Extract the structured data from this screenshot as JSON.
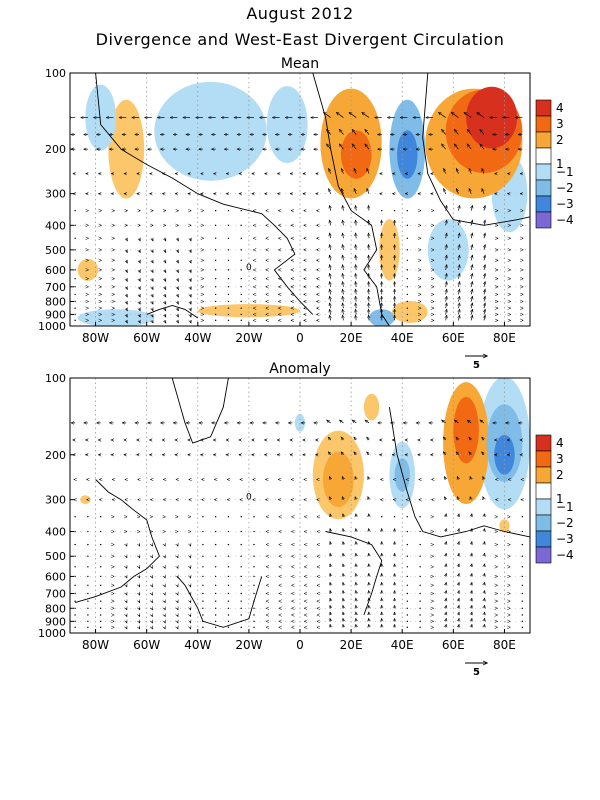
{
  "title": "August 2012",
  "subtitle": "Divergence and West-East Divergent Circulation",
  "colorbar": {
    "labels": [
      "4",
      "3",
      "2",
      "1",
      "−1",
      "−2",
      "−3",
      "−4"
    ],
    "colors": [
      "#d7301f",
      "#f16913",
      "#f7a736",
      "#ffffff",
      "#b3dcf5",
      "#7fbce8",
      "#3f86dc",
      "#7b68d6"
    ]
  },
  "reference_vector": "5",
  "chart_data": [
    {
      "type": "heatmap",
      "title": "Mean",
      "xlabel": "",
      "ylabel": "",
      "xlim": [
        -90,
        90
      ],
      "x_ticks": [
        "80W",
        "60W",
        "40W",
        "20W",
        "0",
        "20E",
        "40E",
        "60E",
        "80E"
      ],
      "y_ticks": [
        "100",
        "200",
        "300",
        "400",
        "500",
        "600",
        "700",
        "800",
        "900",
        "1000"
      ],
      "y_scale": "log-pressure",
      "contour_label": "0",
      "shaded_regions": [
        {
          "lon": 75,
          "p": 150,
          "value": 4,
          "rx": 10,
          "ry": 0.28
        },
        {
          "lon": 72,
          "p": 170,
          "value": 3,
          "rx": 15,
          "ry": 0.38
        },
        {
          "lon": 68,
          "p": 190,
          "value": 2,
          "rx": 19,
          "ry": 0.5
        },
        {
          "lon": 22,
          "p": 210,
          "value": 3,
          "rx": 6,
          "ry": 0.22
        },
        {
          "lon": 20,
          "p": 190,
          "value": 2,
          "rx": 12,
          "ry": 0.5
        },
        {
          "lon": -68,
          "p": 200,
          "value": 1,
          "rx": 7,
          "ry": 0.45
        },
        {
          "lon": -83,
          "p": 600,
          "value": 1,
          "rx": 4,
          "ry": 0.1
        },
        {
          "lon": -20,
          "p": 870,
          "value": 1,
          "rx": 20,
          "ry": 0.06
        },
        {
          "lon": 35,
          "p": 500,
          "value": 1,
          "rx": 4,
          "ry": 0.28
        },
        {
          "lon": 43,
          "p": 880,
          "value": 1,
          "rx": 7,
          "ry": 0.1
        },
        {
          "lon": 42,
          "p": 210,
          "value": -3,
          "rx": 4,
          "ry": 0.22
        },
        {
          "lon": 42,
          "p": 200,
          "value": -2,
          "rx": 7,
          "ry": 0.45
        },
        {
          "lon": -35,
          "p": 170,
          "value": -1,
          "rx": 22,
          "ry": 0.45
        },
        {
          "lon": -5,
          "p": 160,
          "value": -1,
          "rx": 8,
          "ry": 0.35
        },
        {
          "lon": -78,
          "p": 150,
          "value": -1,
          "rx": 6,
          "ry": 0.3
        },
        {
          "lon": 58,
          "p": 500,
          "value": -1,
          "rx": 8,
          "ry": 0.28
        },
        {
          "lon": 82,
          "p": 300,
          "value": -1,
          "rx": 7,
          "ry": 0.35
        },
        {
          "lon": -72,
          "p": 930,
          "value": -1,
          "rx": 15,
          "ry": 0.08
        },
        {
          "lon": 32,
          "p": 930,
          "value": -2,
          "rx": 5,
          "ry": 0.08
        }
      ]
    },
    {
      "type": "heatmap",
      "title": "Anomaly",
      "xlabel": "",
      "ylabel": "",
      "xlim": [
        -90,
        90
      ],
      "x_ticks": [
        "80W",
        "60W",
        "40W",
        "20W",
        "0",
        "20E",
        "40E",
        "60E",
        "80E"
      ],
      "y_ticks": [
        "100",
        "200",
        "300",
        "400",
        "500",
        "600",
        "700",
        "800",
        "900",
        "1000"
      ],
      "y_scale": "log-pressure",
      "contour_label": "0",
      "shaded_regions": [
        {
          "lon": 65,
          "p": 160,
          "value": 3,
          "rx": 5,
          "ry": 0.3
        },
        {
          "lon": 65,
          "p": 180,
          "value": 2,
          "rx": 9,
          "ry": 0.55
        },
        {
          "lon": 15,
          "p": 250,
          "value": 2,
          "rx": 6,
          "ry": 0.25
        },
        {
          "lon": 15,
          "p": 240,
          "value": 1,
          "rx": 10,
          "ry": 0.4
        },
        {
          "lon": 28,
          "p": 130,
          "value": 1,
          "rx": 3,
          "ry": 0.12
        },
        {
          "lon": -84,
          "p": 300,
          "value": 1,
          "rx": 2,
          "ry": 0.04
        },
        {
          "lon": 80,
          "p": 380,
          "value": 1,
          "rx": 2,
          "ry": 0.06
        },
        {
          "lon": 80,
          "p": 200,
          "value": -3,
          "rx": 4,
          "ry": 0.18
        },
        {
          "lon": 80,
          "p": 180,
          "value": -2,
          "rx": 7,
          "ry": 0.35
        },
        {
          "lon": 80,
          "p": 180,
          "value": -1,
          "rx": 10,
          "ry": 0.6
        },
        {
          "lon": 40,
          "p": 240,
          "value": -2,
          "rx": 3,
          "ry": 0.15
        },
        {
          "lon": 40,
          "p": 240,
          "value": -1,
          "rx": 5,
          "ry": 0.3
        },
        {
          "lon": 0,
          "p": 150,
          "value": -1,
          "rx": 2,
          "ry": 0.08
        }
      ]
    }
  ]
}
